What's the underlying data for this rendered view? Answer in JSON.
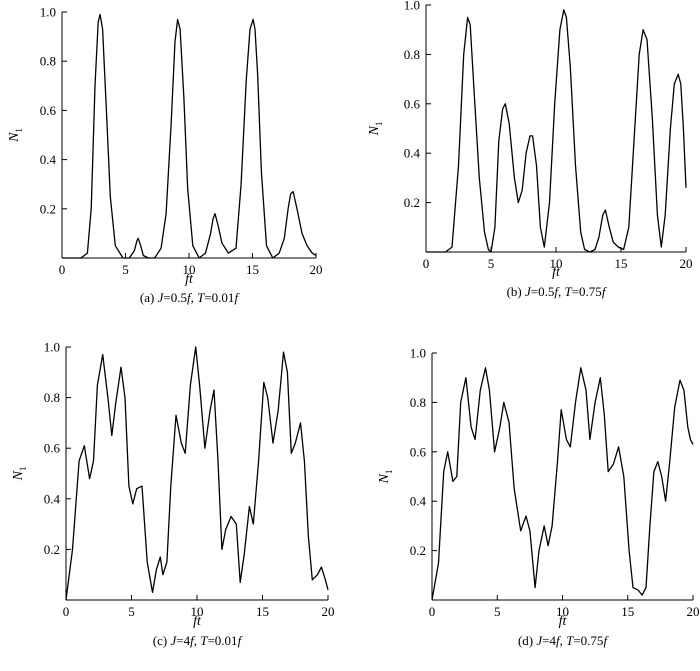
{
  "chart_data": [
    {
      "type": "line",
      "caption": "(a) J=0.5f, T=0.01f",
      "caption_parts": {
        "prefix": "(a) ",
        "v1": "J",
        "mid1": "=0.5",
        "v2": "f",
        "mid2": ", ",
        "v3": "T",
        "mid3": "=0.01",
        "v4": "f"
      },
      "xlabel": "ft",
      "ylabel": "N",
      "ylabel_sub": "1",
      "xlim": [
        0,
        20
      ],
      "ylim": [
        0,
        1.0
      ],
      "x_ticks": [
        "0",
        "5",
        "10",
        "15",
        "20"
      ],
      "y_ticks": [
        "0.2",
        "0.4",
        "0.6",
        "0.8",
        "1.0"
      ],
      "series": [
        {
          "x": [
            0,
            1.5,
            2.0,
            2.3,
            2.6,
            2.85,
            3.0,
            3.2,
            3.5,
            3.8,
            4.2,
            4.8,
            5.3,
            5.7,
            5.9,
            6.0,
            6.2,
            6.4,
            6.8,
            7.3,
            7.8,
            8.2,
            8.6,
            8.9,
            9.1,
            9.3,
            9.6,
            9.9,
            10.3,
            10.8,
            11.3,
            11.7,
            11.9,
            12.05,
            12.3,
            12.6,
            13.1,
            13.7,
            14.1,
            14.5,
            14.8,
            15.05,
            15.2,
            15.4,
            15.7,
            16.1,
            16.6,
            17.1,
            17.5,
            17.8,
            18.0,
            18.2,
            18.5,
            18.9,
            19.3,
            19.7,
            20.0
          ],
          "y": [
            0.0,
            0.0,
            0.02,
            0.2,
            0.7,
            0.96,
            0.99,
            0.93,
            0.6,
            0.25,
            0.05,
            0.0,
            0.0,
            0.03,
            0.07,
            0.08,
            0.05,
            0.01,
            0.0,
            0.0,
            0.04,
            0.18,
            0.55,
            0.88,
            0.97,
            0.93,
            0.65,
            0.28,
            0.05,
            0.0,
            0.02,
            0.1,
            0.16,
            0.18,
            0.13,
            0.06,
            0.02,
            0.04,
            0.3,
            0.72,
            0.93,
            0.97,
            0.93,
            0.75,
            0.35,
            0.05,
            0.0,
            0.02,
            0.08,
            0.2,
            0.26,
            0.27,
            0.2,
            0.1,
            0.05,
            0.02,
            0.01
          ]
        }
      ]
    },
    {
      "type": "line",
      "caption": "(b) J=0.5f, T=0.75f",
      "caption_parts": {
        "prefix": "(b) ",
        "v1": "J",
        "mid1": "=0.5",
        "v2": "f",
        "mid2": ", ",
        "v3": "T",
        "mid3": "=0.75",
        "v4": "f"
      },
      "xlabel": "ft",
      "ylabel": "N",
      "ylabel_sub": "1",
      "xlim": [
        0,
        20
      ],
      "ylim": [
        0,
        1.0
      ],
      "x_ticks": [
        "0",
        "5",
        "10",
        "15",
        "20"
      ],
      "y_ticks": [
        "0.2",
        "0.4",
        "0.6",
        "0.8",
        "1.0"
      ],
      "series": [
        {
          "x": [
            0,
            1.5,
            2.0,
            2.5,
            2.9,
            3.2,
            3.4,
            3.7,
            4.1,
            4.5,
            4.8,
            5.0,
            5.3,
            5.6,
            5.9,
            6.1,
            6.4,
            6.8,
            7.1,
            7.4,
            7.7,
            8.0,
            8.2,
            8.5,
            8.8,
            9.1,
            9.5,
            9.9,
            10.3,
            10.6,
            10.8,
            11.1,
            11.5,
            11.9,
            12.2,
            12.6,
            13.0,
            13.3,
            13.6,
            13.8,
            14.1,
            14.4,
            14.8,
            15.2,
            15.6,
            16.0,
            16.4,
            16.7,
            17.0,
            17.4,
            17.8,
            18.1,
            18.4,
            18.8,
            19.1,
            19.4,
            19.6,
            19.8,
            20.0
          ],
          "y": [
            0.0,
            0.0,
            0.02,
            0.35,
            0.8,
            0.95,
            0.92,
            0.65,
            0.3,
            0.08,
            0.01,
            0.0,
            0.1,
            0.45,
            0.58,
            0.6,
            0.52,
            0.3,
            0.2,
            0.25,
            0.4,
            0.47,
            0.47,
            0.35,
            0.1,
            0.02,
            0.2,
            0.6,
            0.9,
            0.98,
            0.95,
            0.75,
            0.35,
            0.08,
            0.01,
            0.0,
            0.01,
            0.06,
            0.15,
            0.17,
            0.1,
            0.04,
            0.02,
            0.01,
            0.1,
            0.45,
            0.8,
            0.9,
            0.86,
            0.55,
            0.15,
            0.02,
            0.15,
            0.5,
            0.68,
            0.72,
            0.68,
            0.5,
            0.26
          ]
        }
      ]
    },
    {
      "type": "line",
      "caption": "(c) J=4f, T=0.01f",
      "caption_parts": {
        "prefix": "(c) ",
        "v1": "J",
        "mid1": "=4",
        "v2": "f",
        "mid2": ", ",
        "v3": "T",
        "mid3": "=0.01",
        "v4": "f"
      },
      "xlabel": "ft",
      "ylabel": "N",
      "ylabel_sub": "1",
      "xlim": [
        0,
        20
      ],
      "ylim": [
        0,
        1.0
      ],
      "x_ticks": [
        "0",
        "5",
        "10",
        "15",
        "20"
      ],
      "y_ticks": [
        "0.2",
        "0.4",
        "0.6",
        "0.8",
        "1.0"
      ],
      "series": [
        {
          "x": [
            0,
            0.5,
            1.0,
            1.4,
            1.8,
            2.1,
            2.4,
            2.8,
            3.2,
            3.5,
            3.8,
            4.2,
            4.5,
            4.8,
            5.1,
            5.4,
            5.8,
            6.2,
            6.6,
            6.9,
            7.2,
            7.4,
            7.7,
            8.0,
            8.4,
            8.8,
            9.1,
            9.5,
            9.9,
            10.2,
            10.6,
            11.0,
            11.3,
            11.6,
            11.9,
            12.2,
            12.6,
            13.0,
            13.3,
            13.6,
            14.0,
            14.3,
            14.7,
            15.1,
            15.4,
            15.8,
            16.2,
            16.6,
            16.9,
            17.2,
            17.5,
            17.9,
            18.2,
            18.5,
            18.8,
            19.2,
            19.5,
            19.8,
            20.0
          ],
          "y": [
            0.0,
            0.2,
            0.55,
            0.61,
            0.48,
            0.55,
            0.85,
            0.97,
            0.8,
            0.65,
            0.78,
            0.92,
            0.8,
            0.45,
            0.38,
            0.44,
            0.45,
            0.15,
            0.03,
            0.12,
            0.17,
            0.1,
            0.15,
            0.45,
            0.73,
            0.62,
            0.58,
            0.85,
            1.0,
            0.85,
            0.6,
            0.75,
            0.83,
            0.55,
            0.2,
            0.28,
            0.33,
            0.3,
            0.07,
            0.18,
            0.37,
            0.3,
            0.55,
            0.86,
            0.8,
            0.62,
            0.75,
            0.98,
            0.9,
            0.58,
            0.62,
            0.7,
            0.55,
            0.25,
            0.08,
            0.1,
            0.13,
            0.08,
            0.04
          ]
        }
      ]
    },
    {
      "type": "line",
      "caption": "(d) J=4f, T=0.75f",
      "caption_parts": {
        "prefix": "(d) ",
        "v1": "J",
        "mid1": "=4",
        "v2": "f",
        "mid2": ", ",
        "v3": "T",
        "mid3": "=0.75",
        "v4": "f"
      },
      "xlabel": "ft",
      "ylabel": "N",
      "ylabel_sub": "1",
      "xlim": [
        0,
        20
      ],
      "ylim": [
        0,
        1.0
      ],
      "x_ticks": [
        "0",
        "5",
        "10",
        "15",
        "20"
      ],
      "y_ticks": [
        "0.2",
        "0.4",
        "0.6",
        "0.8",
        "1.0"
      ],
      "series": [
        {
          "x": [
            0,
            0.5,
            0.9,
            1.2,
            1.6,
            1.9,
            2.2,
            2.6,
            3.0,
            3.3,
            3.7,
            4.1,
            4.4,
            4.8,
            5.2,
            5.5,
            5.9,
            6.3,
            6.8,
            7.2,
            7.5,
            7.9,
            8.2,
            8.6,
            8.9,
            9.2,
            9.6,
            9.9,
            10.3,
            10.6,
            11.0,
            11.4,
            11.8,
            12.1,
            12.5,
            12.9,
            13.2,
            13.5,
            13.9,
            14.3,
            14.7,
            15.1,
            15.4,
            15.8,
            16.1,
            16.4,
            16.7,
            17.0,
            17.3,
            17.6,
            17.9,
            18.2,
            18.6,
            19.0,
            19.3,
            19.6,
            19.8,
            20.0
          ],
          "y": [
            0.0,
            0.15,
            0.52,
            0.6,
            0.48,
            0.5,
            0.8,
            0.9,
            0.7,
            0.65,
            0.85,
            0.94,
            0.85,
            0.6,
            0.7,
            0.8,
            0.72,
            0.45,
            0.28,
            0.34,
            0.28,
            0.05,
            0.2,
            0.3,
            0.22,
            0.3,
            0.55,
            0.77,
            0.65,
            0.62,
            0.8,
            0.94,
            0.85,
            0.65,
            0.8,
            0.9,
            0.75,
            0.52,
            0.55,
            0.62,
            0.5,
            0.2,
            0.05,
            0.04,
            0.02,
            0.05,
            0.3,
            0.52,
            0.56,
            0.5,
            0.4,
            0.55,
            0.78,
            0.89,
            0.85,
            0.7,
            0.65,
            0.63
          ]
        }
      ]
    }
  ]
}
